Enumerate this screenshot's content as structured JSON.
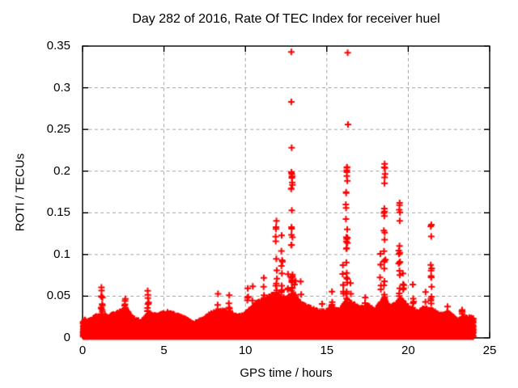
{
  "chart_data": {
    "type": "scatter",
    "title": "Day 282 of 2016, Rate Of TEC Index for receiver huel",
    "xlabel": "GPS time / hours",
    "ylabel": "ROTI / TECUs",
    "xlim": [
      0,
      25
    ],
    "ylim": [
      0,
      0.35
    ],
    "xtick_values": [
      0,
      5,
      10,
      15,
      20,
      25
    ],
    "xtick_labels": [
      "0",
      "5",
      "10",
      "15",
      "20",
      "25"
    ],
    "ytick_values": [
      0,
      0.05,
      0.1,
      0.15,
      0.2,
      0.25,
      0.3,
      0.35
    ],
    "ytick_labels": [
      "0",
      "0.05",
      "0.1",
      "0.15",
      "0.2",
      "0.25",
      "0.3",
      "0.35"
    ],
    "legend": "none",
    "grid": {
      "style": "dashed",
      "color": "#a8a8a8",
      "x_values": [
        5,
        10,
        15,
        20
      ],
      "y_values": [
        0.05,
        0.1,
        0.15,
        0.2,
        0.25,
        0.3
      ]
    },
    "marker": {
      "shape": "plus",
      "color": "#ff0000",
      "size": 8,
      "stroke_width": 2
    },
    "frame_color": "#000000",
    "background": "#ffffff",
    "series": {
      "name": "ROTI",
      "description": "Dense noise band 0-0.03 TECU across 0-24 h with storm-time spikes",
      "sampling": {
        "t_start": 0.03,
        "t_end": 24.0,
        "t_step": 0.008333,
        "points_per_epoch_min": 6,
        "points_per_epoch_max": 8
      },
      "baseline_envelope": [
        [
          0,
          0.018
        ],
        [
          0.5,
          0.02
        ],
        [
          0.8,
          0.024
        ],
        [
          1.2,
          0.026
        ],
        [
          1.6,
          0.024
        ],
        [
          2.2,
          0.03
        ],
        [
          2.7,
          0.032
        ],
        [
          3.1,
          0.022
        ],
        [
          3.6,
          0.018
        ],
        [
          4.1,
          0.028
        ],
        [
          4.6,
          0.026
        ],
        [
          5.2,
          0.03
        ],
        [
          5.8,
          0.026
        ],
        [
          6.3,
          0.022
        ],
        [
          6.8,
          0.016
        ],
        [
          7.3,
          0.02
        ],
        [
          7.9,
          0.028
        ],
        [
          8.4,
          0.032
        ],
        [
          9.0,
          0.03
        ],
        [
          9.5,
          0.024
        ],
        [
          10.0,
          0.028
        ],
        [
          10.5,
          0.038
        ],
        [
          11.0,
          0.044
        ],
        [
          11.5,
          0.05
        ],
        [
          12.0,
          0.05
        ],
        [
          12.5,
          0.046
        ],
        [
          12.9,
          0.052
        ],
        [
          13.3,
          0.042
        ],
        [
          13.8,
          0.036
        ],
        [
          14.3,
          0.032
        ],
        [
          14.8,
          0.03
        ],
        [
          15.3,
          0.034
        ],
        [
          15.8,
          0.032
        ],
        [
          16.2,
          0.042
        ],
        [
          16.6,
          0.04
        ],
        [
          17.0,
          0.034
        ],
        [
          17.5,
          0.038
        ],
        [
          18.0,
          0.032
        ],
        [
          18.5,
          0.046
        ],
        [
          19.0,
          0.036
        ],
        [
          19.5,
          0.046
        ],
        [
          20.0,
          0.036
        ],
        [
          20.5,
          0.03
        ],
        [
          21.0,
          0.034
        ],
        [
          21.5,
          0.032
        ],
        [
          22.0,
          0.026
        ],
        [
          22.5,
          0.028
        ],
        [
          23.0,
          0.02
        ],
        [
          23.5,
          0.024
        ],
        [
          24.0,
          0.022
        ]
      ],
      "spikes": [
        {
          "t": 0.15,
          "w": 0.06,
          "n": 4,
          "min": 0.02,
          "max": 0.036,
          "top": 0
        },
        {
          "t": 1.18,
          "w": 0.1,
          "n": 9,
          "min": 0.03,
          "max": 0.066,
          "top": 2
        },
        {
          "t": 2.6,
          "w": 0.1,
          "n": 7,
          "min": 0.03,
          "max": 0.053,
          "top": 2
        },
        {
          "t": 4.02,
          "w": 0.1,
          "n": 8,
          "min": 0.032,
          "max": 0.061,
          "top": 2
        },
        {
          "t": 8.3,
          "w": 0.08,
          "n": 6,
          "min": 0.03,
          "max": 0.053,
          "top": 1
        },
        {
          "t": 9.0,
          "w": 0.08,
          "n": 5,
          "min": 0.028,
          "max": 0.055,
          "top": 1
        },
        {
          "t": 10.15,
          "w": 0.06,
          "n": 5,
          "min": 0.03,
          "max": 0.063,
          "top": 1
        },
        {
          "t": 10.45,
          "w": 0.08,
          "n": 6,
          "min": 0.03,
          "max": 0.062,
          "top": 1
        },
        {
          "t": 11.12,
          "w": 0.08,
          "n": 7,
          "min": 0.035,
          "max": 0.076,
          "top": 1
        },
        {
          "t": 11.9,
          "w": 0.1,
          "n": 13,
          "min": 0.04,
          "max": 0.143,
          "top": 2
        },
        {
          "t": 12.25,
          "w": 0.1,
          "n": 12,
          "min": 0.04,
          "max": 0.128,
          "top": 1
        },
        {
          "t": 12.6,
          "w": 0.1,
          "n": 8,
          "min": 0.03,
          "max": 0.09,
          "top": 0
        },
        {
          "t": 12.85,
          "w": 0.09,
          "n": 24,
          "min": 0.03,
          "max": 0.2,
          "top": 5
        },
        {
          "t": 13.05,
          "w": 0.1,
          "n": 8,
          "min": 0.03,
          "max": 0.085,
          "top": 0
        },
        {
          "t": 13.4,
          "w": 0.08,
          "n": 7,
          "min": 0.03,
          "max": 0.068,
          "top": 1
        },
        {
          "t": 14.7,
          "w": 0.07,
          "n": 5,
          "min": 0.025,
          "max": 0.048,
          "top": 1
        },
        {
          "t": 15.3,
          "w": 0.07,
          "n": 6,
          "min": 0.028,
          "max": 0.06,
          "top": 1
        },
        {
          "t": 16.0,
          "w": 0.08,
          "n": 8,
          "min": 0.03,
          "max": 0.1,
          "top": 0
        },
        {
          "t": 16.22,
          "w": 0.12,
          "n": 26,
          "min": 0.04,
          "max": 0.205,
          "top": 6
        },
        {
          "t": 16.45,
          "w": 0.06,
          "n": 6,
          "min": 0.03,
          "max": 0.08,
          "top": 0
        },
        {
          "t": 17.35,
          "w": 0.07,
          "n": 6,
          "min": 0.028,
          "max": 0.06,
          "top": 1
        },
        {
          "t": 18.3,
          "w": 0.08,
          "n": 8,
          "min": 0.03,
          "max": 0.12,
          "top": 0
        },
        {
          "t": 18.55,
          "w": 0.1,
          "n": 20,
          "min": 0.04,
          "max": 0.212,
          "top": 3
        },
        {
          "t": 19.45,
          "w": 0.09,
          "n": 16,
          "min": 0.04,
          "max": 0.164,
          "top": 3
        },
        {
          "t": 19.7,
          "w": 0.07,
          "n": 8,
          "min": 0.03,
          "max": 0.11,
          "top": 0
        },
        {
          "t": 20.3,
          "w": 0.07,
          "n": 7,
          "min": 0.03,
          "max": 0.065,
          "top": 1
        },
        {
          "t": 21.05,
          "w": 0.05,
          "n": 4,
          "min": 0.025,
          "max": 0.059,
          "top": 1
        },
        {
          "t": 21.4,
          "w": 0.08,
          "n": 12,
          "min": 0.04,
          "max": 0.137,
          "top": 2
        },
        {
          "t": 22.4,
          "w": 0.06,
          "n": 5,
          "min": 0.025,
          "max": 0.048,
          "top": 1
        },
        {
          "t": 23.3,
          "w": 0.06,
          "n": 5,
          "min": 0.022,
          "max": 0.045,
          "top": 1
        }
      ],
      "outlier_points": [
        [
          12.82,
          0.343
        ],
        [
          12.82,
          0.283
        ],
        [
          12.84,
          0.228
        ],
        [
          12.82,
          0.198
        ],
        [
          12.85,
          0.153
        ],
        [
          12.84,
          0.131
        ],
        [
          16.28,
          0.342
        ],
        [
          16.3,
          0.256
        ]
      ]
    }
  }
}
